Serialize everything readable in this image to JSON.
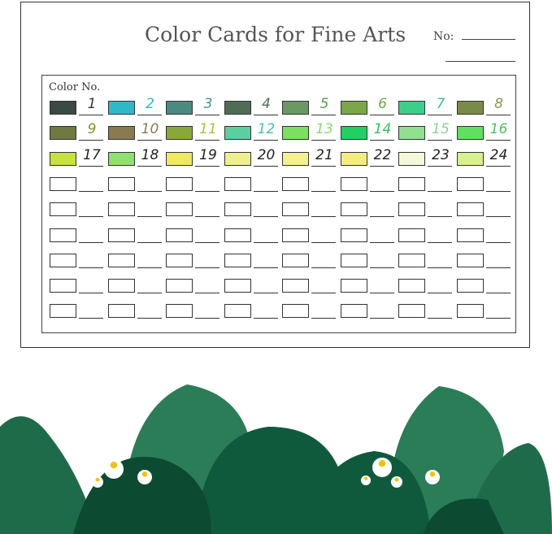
{
  "card": {
    "title": "Color Cards for Fine Arts",
    "no_label": "No:",
    "grid_label": "Color No."
  },
  "colors": [
    {
      "n": "1",
      "swatch": "#3a4a44",
      "ink": "#333333"
    },
    {
      "n": "2",
      "swatch": "#2fb8c8",
      "ink": "#2fb8c8"
    },
    {
      "n": "3",
      "swatch": "#4a8a80",
      "ink": "#3a9a8a"
    },
    {
      "n": "4",
      "swatch": "#4e6e54",
      "ink": "#4e6e54"
    },
    {
      "n": "5",
      "swatch": "#6a9a62",
      "ink": "#5a9a52"
    },
    {
      "n": "6",
      "swatch": "#7aa848",
      "ink": "#6aaa48"
    },
    {
      "n": "7",
      "swatch": "#3ccf8a",
      "ink": "#3cbf9a"
    },
    {
      "n": "8",
      "swatch": "#7a8a48",
      "ink": "#8a9a48"
    },
    {
      "n": "9",
      "swatch": "#6e7a40",
      "ink": "#8a9030"
    },
    {
      "n": "10",
      "swatch": "#8a7a50",
      "ink": "#8a7a50"
    },
    {
      "n": "11",
      "swatch": "#8aa838",
      "ink": "#a8c040"
    },
    {
      "n": "12",
      "swatch": "#5ad0a0",
      "ink": "#4ac0b0"
    },
    {
      "n": "13",
      "swatch": "#7ae060",
      "ink": "#8ad870"
    },
    {
      "n": "14",
      "swatch": "#20d060",
      "ink": "#30c060"
    },
    {
      "n": "15",
      "swatch": "#90e090",
      "ink": "#90d090"
    },
    {
      "n": "16",
      "swatch": "#60e060",
      "ink": "#50c060"
    },
    {
      "n": "17",
      "swatch": "#c8e040",
      "ink": "#222222"
    },
    {
      "n": "18",
      "swatch": "#90e070",
      "ink": "#222222"
    },
    {
      "n": "19",
      "swatch": "#f0e860",
      "ink": "#222222"
    },
    {
      "n": "20",
      "swatch": "#eef090",
      "ink": "#222222"
    },
    {
      "n": "21",
      "swatch": "#f4f090",
      "ink": "#222222"
    },
    {
      "n": "22",
      "swatch": "#f4ec80",
      "ink": "#222222"
    },
    {
      "n": "23",
      "swatch": "#f4f8d8",
      "ink": "#222222"
    },
    {
      "n": "24",
      "swatch": "#d8f090",
      "ink": "#222222"
    }
  ],
  "empty_rows": 6,
  "leaf_colors": [
    "#1e6b4a",
    "#0f5a3c",
    "#2a7d57",
    "#0c4a32"
  ]
}
